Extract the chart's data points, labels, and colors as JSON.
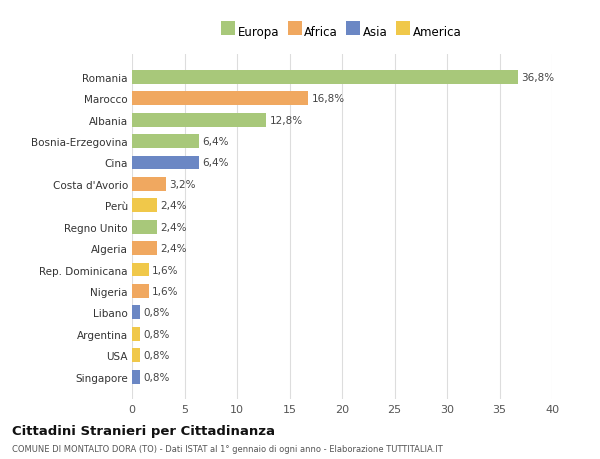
{
  "categories": [
    "Singapore",
    "USA",
    "Argentina",
    "Libano",
    "Nigeria",
    "Rep. Dominicana",
    "Algeria",
    "Regno Unito",
    "Perù",
    "Costa d'Avorio",
    "Cina",
    "Bosnia-Erzegovina",
    "Albania",
    "Marocco",
    "Romania"
  ],
  "values": [
    0.8,
    0.8,
    0.8,
    0.8,
    1.6,
    1.6,
    2.4,
    2.4,
    2.4,
    3.2,
    6.4,
    6.4,
    12.8,
    16.8,
    36.8
  ],
  "labels": [
    "0,8%",
    "0,8%",
    "0,8%",
    "0,8%",
    "1,6%",
    "1,6%",
    "2,4%",
    "2,4%",
    "2,4%",
    "3,2%",
    "6,4%",
    "6,4%",
    "12,8%",
    "16,8%",
    "36,8%"
  ],
  "colors": [
    "#6b87c4",
    "#f0c84a",
    "#f0c84a",
    "#6b87c4",
    "#f0a860",
    "#f0c84a",
    "#f0a860",
    "#a8c87a",
    "#f0c84a",
    "#f0a860",
    "#6b87c4",
    "#a8c87a",
    "#a8c87a",
    "#f0a860",
    "#a8c87a"
  ],
  "legend_labels": [
    "Europa",
    "Africa",
    "Asia",
    "America"
  ],
  "legend_colors": [
    "#a8c87a",
    "#f0a860",
    "#6b87c4",
    "#f0c84a"
  ],
  "title": "Cittadini Stranieri per Cittadinanza",
  "subtitle": "COMUNE DI MONTALTO DORA (TO) - Dati ISTAT al 1° gennaio di ogni anno - Elaborazione TUTTITALIA.IT",
  "xlim": [
    0,
    40
  ],
  "xticks": [
    0,
    5,
    10,
    15,
    20,
    25,
    30,
    35,
    40
  ],
  "plot_bg": "#ffffff",
  "fig_bg": "#ffffff",
  "grid_color": "#dddddd"
}
